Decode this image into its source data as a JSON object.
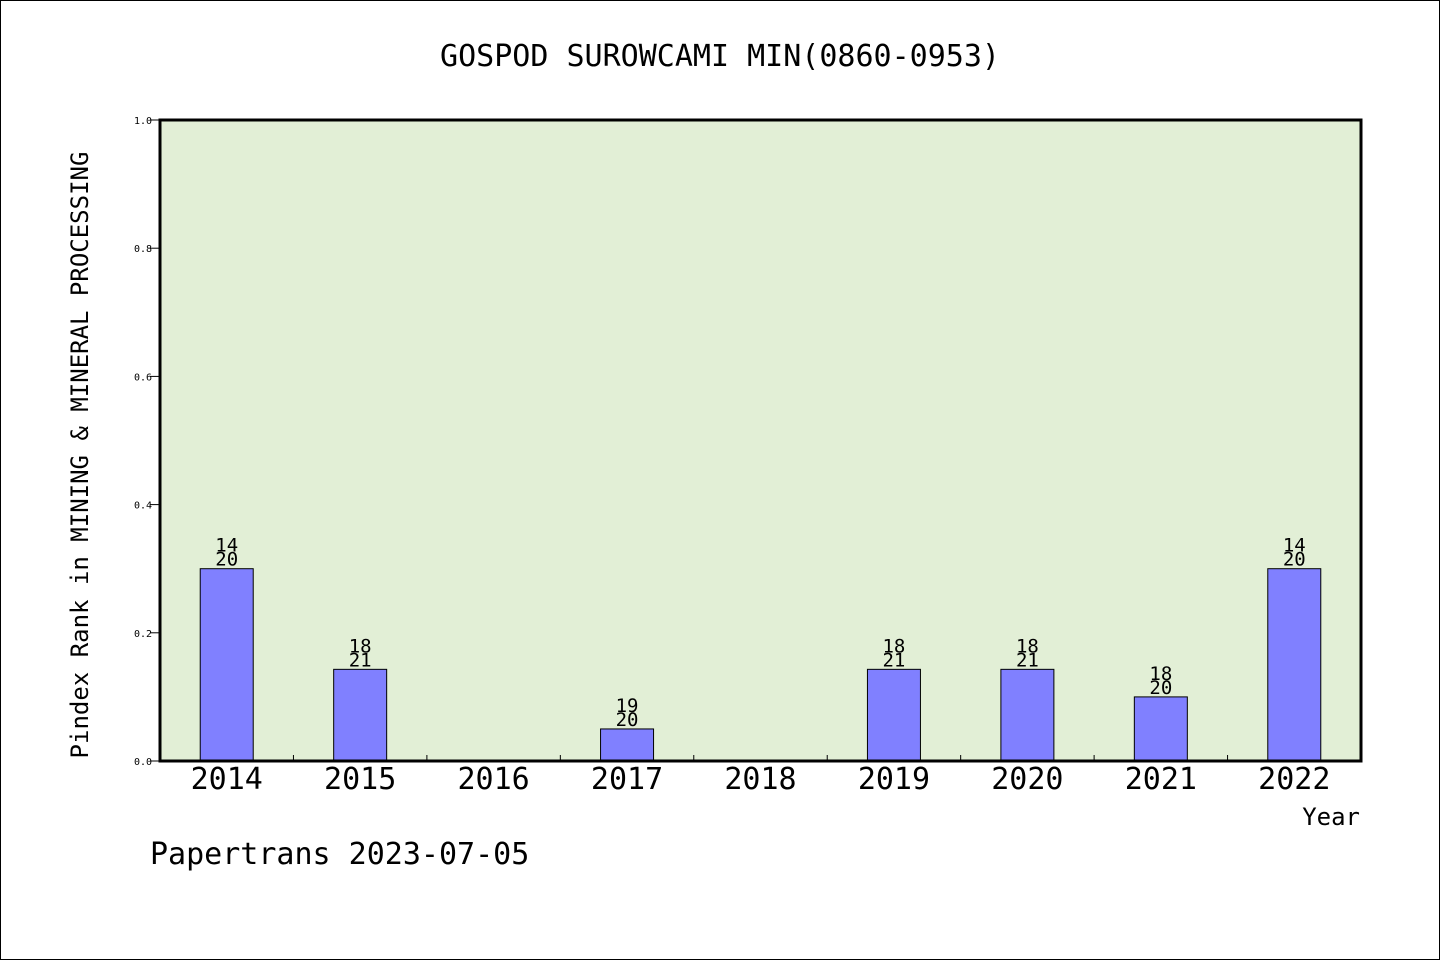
{
  "chart_data": {
    "type": "bar",
    "title": "GOSPOD SUROWCAMI MIN(0860-0953)",
    "ylabel": "Pindex Rank in MINING & MINERAL PROCESSING",
    "xlabel": "Year",
    "ylim": [
      0,
      1.0
    ],
    "yticks": [
      "0.0",
      "0.2",
      "0.4",
      "0.6",
      "0.8",
      "1.0"
    ],
    "categories": [
      "2014",
      "2015",
      "2016",
      "2017",
      "2018",
      "2019",
      "2020",
      "2021",
      "2022"
    ],
    "values": [
      0.3,
      0.143,
      null,
      0.05,
      null,
      0.143,
      0.143,
      0.1,
      0.3
    ],
    "bar_labels": [
      [
        "14",
        "20"
      ],
      [
        "18",
        "21"
      ],
      null,
      [
        "19",
        "20"
      ],
      null,
      [
        "18",
        "21"
      ],
      [
        "18",
        "21"
      ],
      [
        "18",
        "20"
      ],
      [
        "14",
        "20"
      ]
    ],
    "grid": false,
    "colors": {
      "bar": "#8080ff",
      "plot_background": "#e2efd6",
      "axis": "#000000"
    }
  },
  "footer": {
    "text": "Papertrans 2023-07-05"
  }
}
